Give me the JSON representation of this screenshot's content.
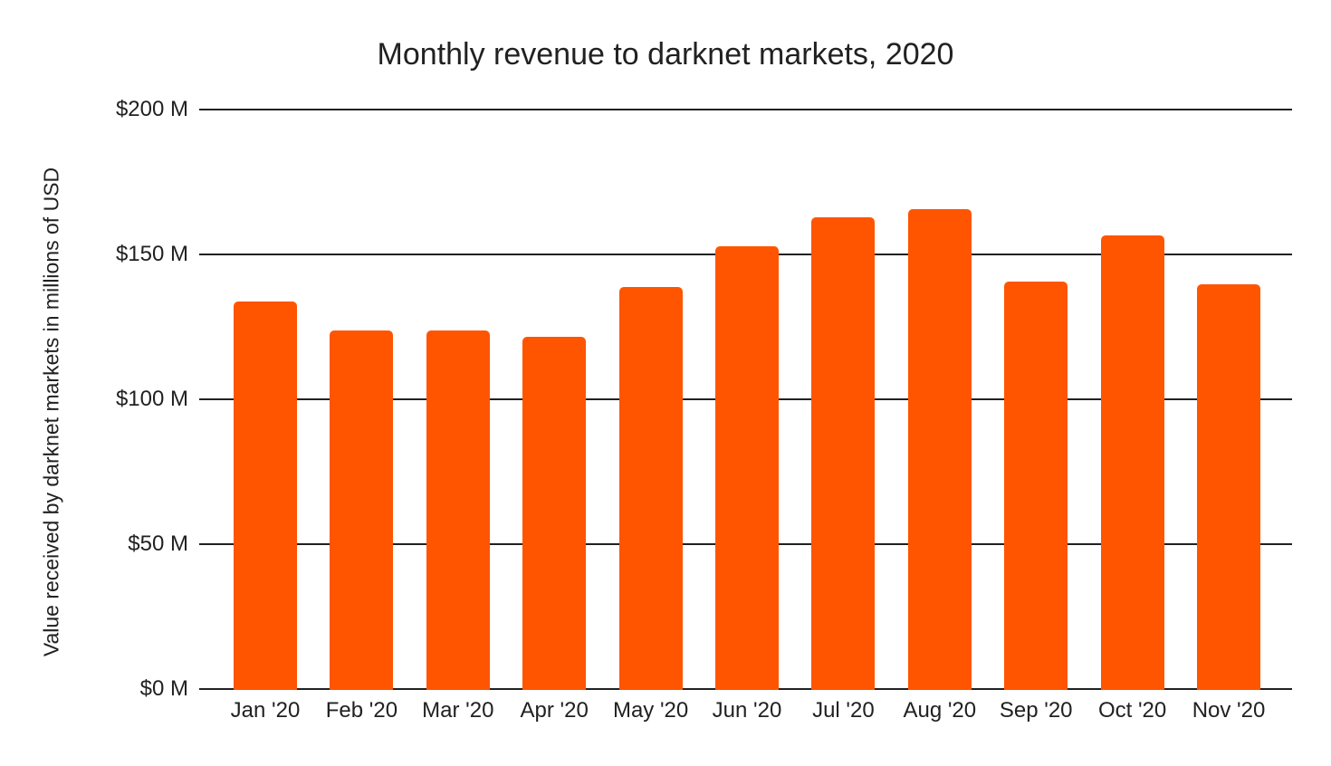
{
  "title": "Monthly revenue to darknet markets, 2020",
  "colors": {
    "bar": "#FF5500",
    "grid": "#212121",
    "text": "#212121",
    "background": "#FFFFFF"
  },
  "chart_data": {
    "type": "bar",
    "title": "Monthly revenue to darknet markets, 2020",
    "xlabel": "",
    "ylabel": "Value received by darknet markets in millions of USD",
    "unit": "millions of USD",
    "categories": [
      "Jan '20",
      "Feb '20",
      "Mar '20",
      "Apr '20",
      "May '20",
      "Jun '20",
      "Jul '20",
      "Aug '20",
      "Sep '20",
      "Oct '20",
      "Nov '20"
    ],
    "values": [
      134,
      124,
      124,
      122,
      139,
      153,
      163,
      166,
      141,
      157,
      140
    ],
    "ylim": [
      0,
      200
    ],
    "yticks": [
      {
        "value": 0,
        "label": "$0 M"
      },
      {
        "value": 50,
        "label": "$50 M"
      },
      {
        "value": 100,
        "label": "$100 M"
      },
      {
        "value": 150,
        "label": "$150 M"
      },
      {
        "value": 200,
        "label": "$200 M"
      }
    ],
    "grid": true,
    "legend": "none"
  }
}
